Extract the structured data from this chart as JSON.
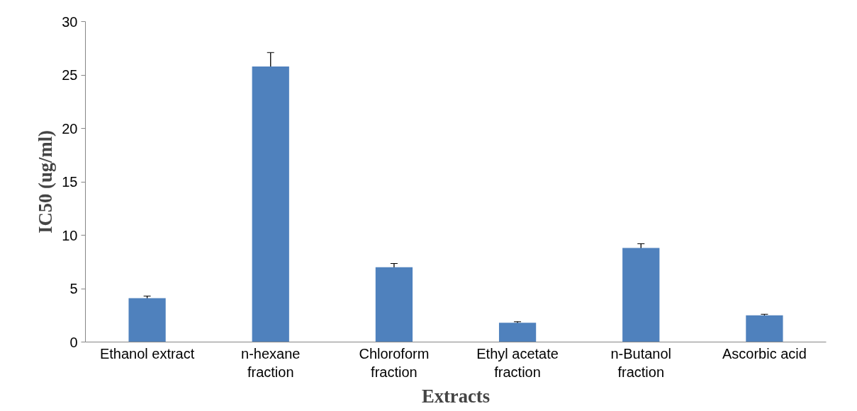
{
  "chart_data": {
    "type": "bar",
    "xlabel": "Extracts",
    "ylabel": "IC50 (ug/ml)",
    "categories": [
      "Ethanol extract",
      "n-hexane fraction",
      "Chloroform fraction",
      "Ethyl acetate fraction",
      "n-Butanol fraction",
      "Ascorbic acid"
    ],
    "values": [
      4.1,
      25.8,
      7.0,
      1.8,
      8.8,
      2.5
    ],
    "errors": [
      0.2,
      1.3,
      0.35,
      0.1,
      0.4,
      0.1
    ],
    "color": "#4f81bd",
    "ylim": [
      0,
      30
    ],
    "yticks": [
      0,
      5,
      10,
      15,
      20,
      25,
      30
    ],
    "grid": false
  }
}
